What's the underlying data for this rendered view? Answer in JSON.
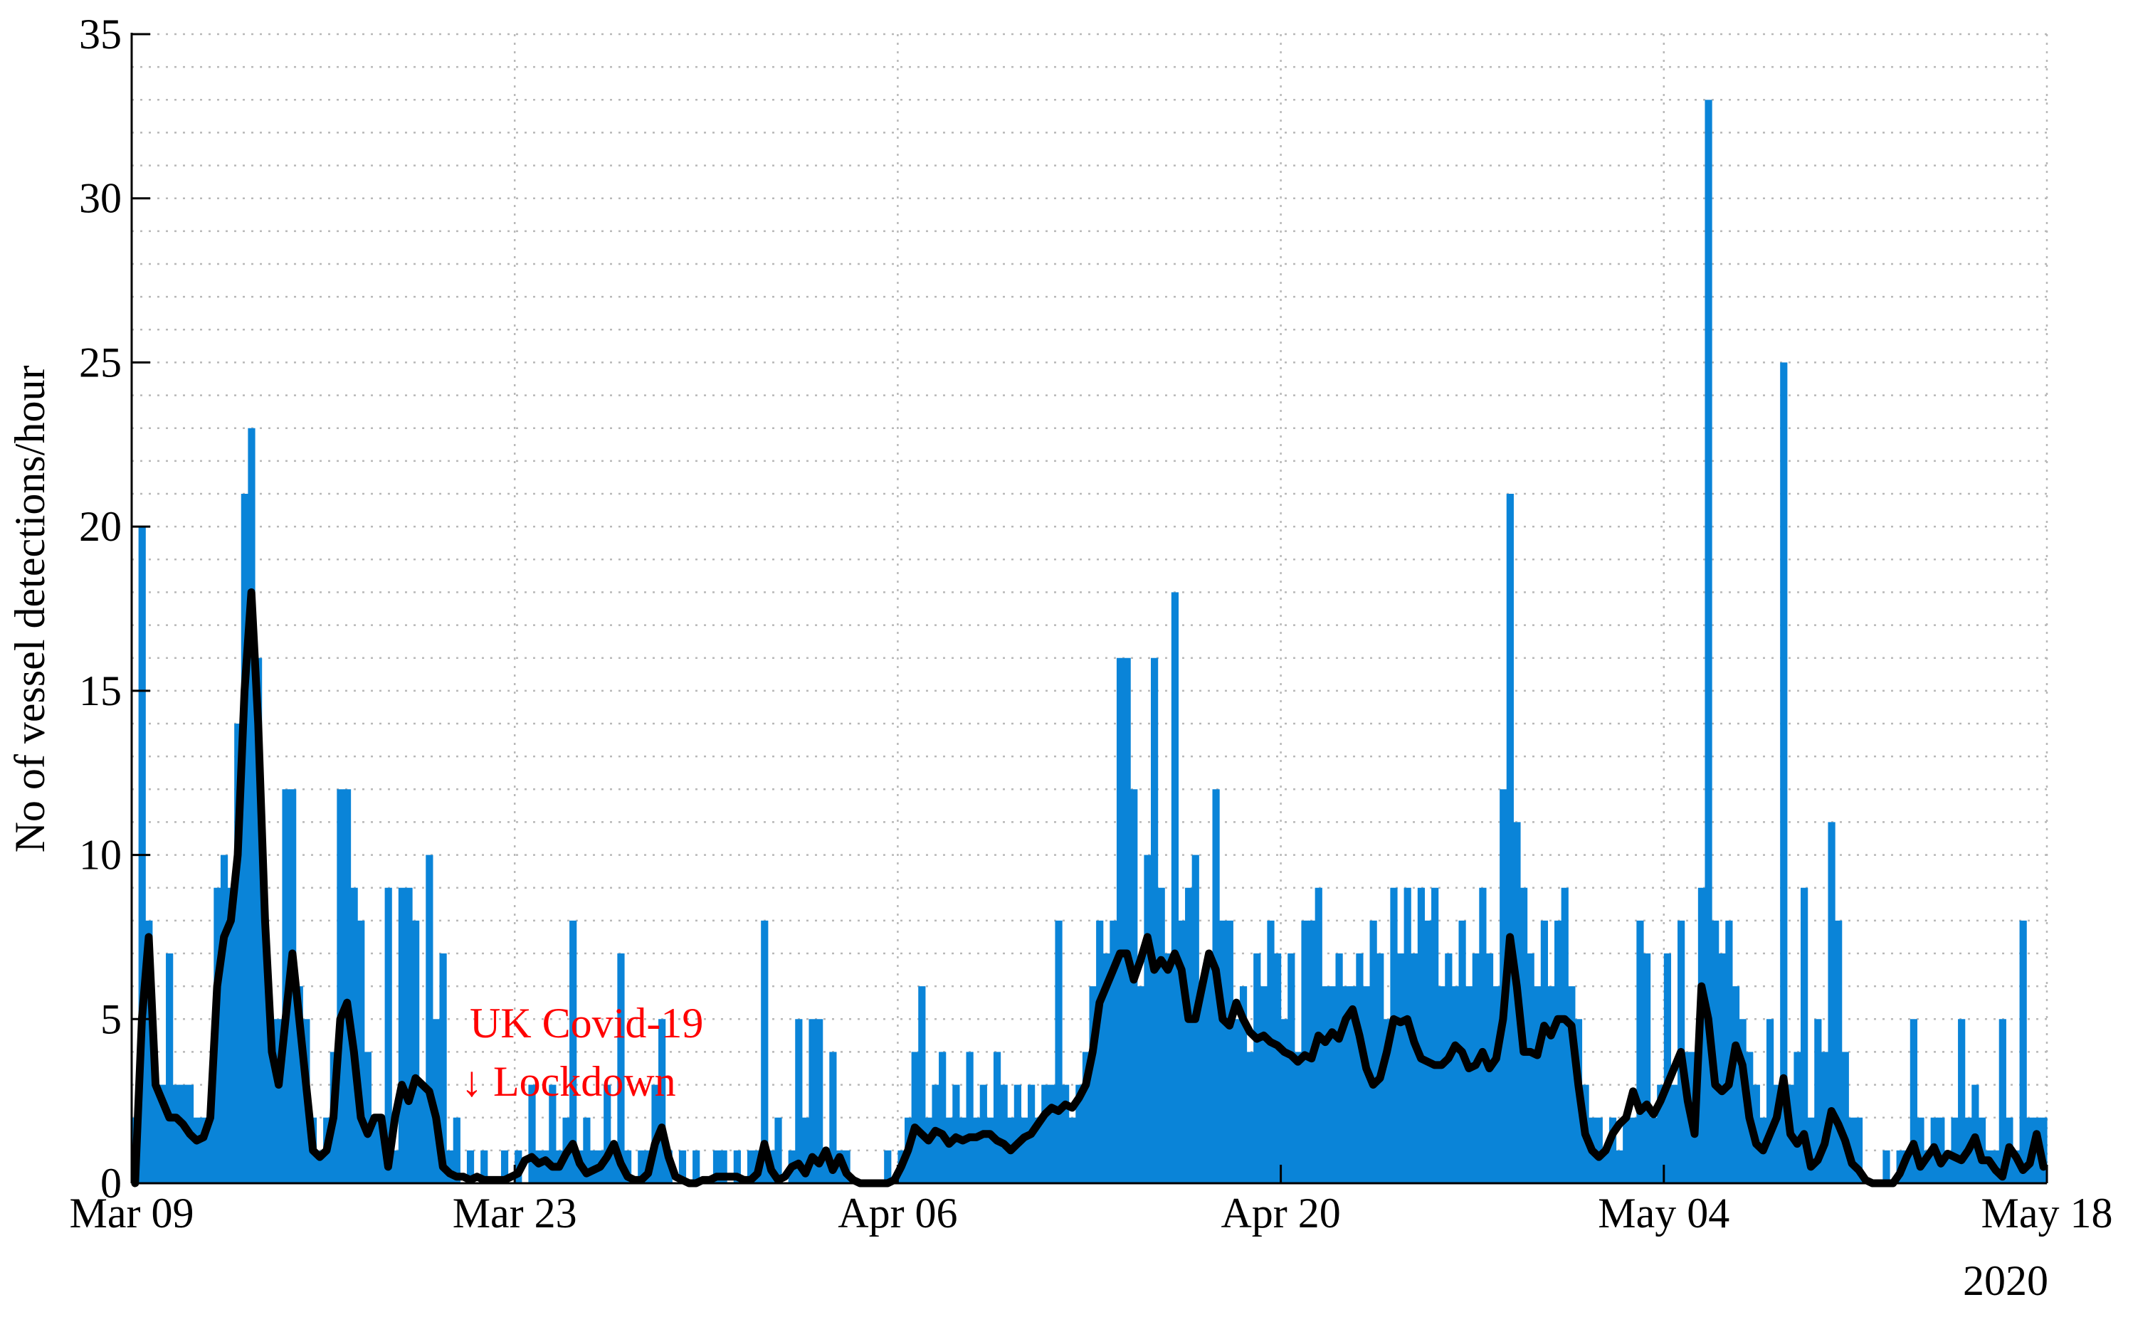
{
  "chart_data": {
    "type": "bar",
    "ylabel": "No of vessel detections/hour",
    "x_secondary_label": "2020",
    "xlim": [
      "2020-03-09",
      "2020-05-18"
    ],
    "xticks": [
      {
        "value": "2020-03-09",
        "label": "Mar 09"
      },
      {
        "value": "2020-03-23",
        "label": "Mar 23"
      },
      {
        "value": "2020-04-06",
        "label": "Apr 06"
      },
      {
        "value": "2020-04-20",
        "label": "Apr 20"
      },
      {
        "value": "2020-05-04",
        "label": "May 04"
      },
      {
        "value": "2020-05-18",
        "label": "May 18"
      }
    ],
    "ylim": [
      0,
      35
    ],
    "yticks": [
      0,
      5,
      10,
      15,
      20,
      25,
      30,
      35
    ],
    "yminorticks": [
      0,
      1,
      2,
      3,
      4,
      5,
      6,
      7,
      8,
      9,
      10,
      11,
      12,
      13,
      14,
      15,
      16,
      17,
      18,
      19,
      20,
      21,
      22,
      23,
      24,
      25,
      26,
      27,
      28,
      29,
      30,
      31,
      32,
      33,
      34,
      35
    ],
    "grid": true,
    "annotations": [
      {
        "text": "UK Covid-19",
        "color": "#ff0000"
      },
      {
        "text": "↓ Lockdown",
        "color": "#ff0000"
      }
    ],
    "bars": {
      "color": "#0a84d8",
      "values": [
        2,
        20,
        8,
        3,
        3,
        7,
        3,
        3,
        3,
        2,
        2,
        2,
        9,
        10,
        9,
        14,
        21,
        23,
        16,
        8,
        5,
        5,
        12,
        12,
        6,
        5,
        2,
        1,
        2,
        4,
        12,
        12,
        9,
        8,
        4,
        2,
        2,
        9,
        1,
        9,
        9,
        8,
        3,
        10,
        5,
        7,
        1,
        2,
        0,
        1,
        0,
        1,
        0,
        0,
        1,
        0,
        1,
        0,
        3,
        1,
        1,
        3,
        1,
        2,
        8,
        1,
        2,
        1,
        1,
        3,
        1,
        7,
        1,
        0,
        1,
        1,
        3,
        5,
        1,
        0,
        1,
        0,
        1,
        0,
        0,
        1,
        1,
        0,
        1,
        0,
        1,
        1,
        8,
        1,
        2,
        0,
        1,
        5,
        2,
        5,
        5,
        1,
        4,
        1,
        1,
        0,
        0,
        0,
        0,
        0,
        1,
        0,
        1,
        2,
        4,
        6,
        2,
        3,
        4,
        2,
        3,
        2,
        4,
        2,
        3,
        2,
        4,
        3,
        2,
        3,
        2,
        3,
        2,
        3,
        3,
        8,
        3,
        2,
        3,
        4,
        6,
        8,
        7,
        8,
        16,
        16,
        12,
        6,
        10,
        16,
        9,
        7,
        18,
        8,
        9,
        10,
        6,
        7,
        12,
        8,
        8,
        5,
        6,
        4,
        7,
        6,
        8,
        7,
        5,
        7,
        4,
        8,
        8,
        9,
        6,
        6,
        7,
        6,
        6,
        7,
        6,
        8,
        7,
        5,
        9,
        7,
        9,
        7,
        9,
        8,
        9,
        6,
        7,
        6,
        8,
        6,
        7,
        9,
        7,
        6,
        12,
        21,
        11,
        9,
        7,
        6,
        8,
        6,
        8,
        9,
        6,
        5,
        3,
        2,
        2,
        1,
        2,
        1,
        2,
        2,
        8,
        7,
        2,
        3,
        7,
        3,
        8,
        4,
        4,
        9,
        33,
        8,
        7,
        8,
        6,
        5,
        4,
        3,
        2,
        5,
        3,
        25,
        3,
        4,
        9,
        2,
        5,
        4,
        11,
        8,
        4,
        2,
        2,
        0,
        0,
        0,
        1,
        0,
        1,
        1,
        5,
        2,
        1,
        2,
        2,
        1,
        2,
        5,
        2,
        3,
        2,
        1,
        1,
        5,
        2,
        1,
        8,
        2,
        2,
        2
      ]
    },
    "line": {
      "color": "#000000",
      "values": [
        0,
        5,
        7.5,
        3,
        2.5,
        2,
        2,
        1.8,
        1.5,
        1.3,
        1.4,
        2,
        6,
        7.5,
        8,
        10,
        15,
        18,
        14,
        8,
        4,
        3,
        5,
        7,
        5,
        3,
        1,
        0.8,
        1,
        2,
        5,
        5.5,
        4,
        2,
        1.5,
        2,
        2,
        0.5,
        2,
        3,
        2.5,
        3.2,
        3,
        2.8,
        2,
        0.5,
        0.3,
        0.2,
        0.2,
        0.1,
        0.2,
        0.1,
        0.1,
        0.1,
        0.1,
        0.2,
        0.3,
        0.7,
        0.8,
        0.6,
        0.7,
        0.5,
        0.5,
        0.9,
        1.2,
        0.6,
        0.3,
        0.4,
        0.5,
        0.8,
        1.2,
        0.6,
        0.2,
        0.1,
        0.1,
        0.3,
        1.2,
        1.7,
        0.8,
        0.2,
        0.1,
        0,
        0,
        0.1,
        0.1,
        0.2,
        0.2,
        0.2,
        0.2,
        0.1,
        0.1,
        0.3,
        1.2,
        0.4,
        0.1,
        0.2,
        0.5,
        0.6,
        0.3,
        0.8,
        0.6,
        1,
        0.4,
        0.8,
        0.3,
        0.1,
        0,
        0,
        0,
        0,
        0,
        0.1,
        0.5,
        1,
        1.7,
        1.5,
        1.3,
        1.6,
        1.5,
        1.2,
        1.4,
        1.3,
        1.4,
        1.4,
        1.5,
        1.5,
        1.3,
        1.2,
        1,
        1.2,
        1.4,
        1.5,
        1.8,
        2.1,
        2.3,
        2.2,
        2.4,
        2.3,
        2.6,
        3,
        4,
        5.5,
        6,
        6.5,
        7,
        7,
        6.2,
        6.8,
        7.5,
        6.5,
        6.8,
        6.5,
        7,
        6.5,
        5,
        5,
        6,
        7,
        6.5,
        5,
        4.8,
        5.5,
        5,
        4.6,
        4.4,
        4.5,
        4.3,
        4.2,
        4,
        3.9,
        3.7,
        3.9,
        3.8,
        4.5,
        4.3,
        4.6,
        4.4,
        5,
        5.3,
        4.5,
        3.5,
        3,
        3.2,
        4,
        5,
        4.9,
        5,
        4.3,
        3.8,
        3.7,
        3.6,
        3.6,
        3.8,
        4.2,
        4,
        3.5,
        3.6,
        4,
        3.5,
        3.8,
        5,
        7.5,
        6,
        4,
        4,
        3.9,
        4.8,
        4.5,
        5,
        5,
        4.8,
        3,
        1.5,
        1,
        0.8,
        1,
        1.5,
        1.8,
        2,
        2.8,
        2.2,
        2.4,
        2.1,
        2.5,
        3,
        3.5,
        4,
        2.5,
        1.5,
        6,
        5,
        3,
        2.8,
        3,
        4.2,
        3.6,
        2,
        1.2,
        1,
        1.5,
        2,
        3.2,
        1.5,
        1.2,
        1.5,
        0.5,
        0.7,
        1.2,
        2.2,
        1.8,
        1.3,
        0.6,
        0.4,
        0.1,
        0,
        0,
        0,
        0,
        0.3,
        0.8,
        1.2,
        0.5,
        0.8,
        1.1,
        0.6,
        0.9,
        0.8,
        0.7,
        1,
        1.4,
        0.7,
        0.7,
        0.4,
        0.2,
        1.1,
        0.8,
        0.4,
        0.6,
        1.5,
        0.5
      ]
    }
  }
}
